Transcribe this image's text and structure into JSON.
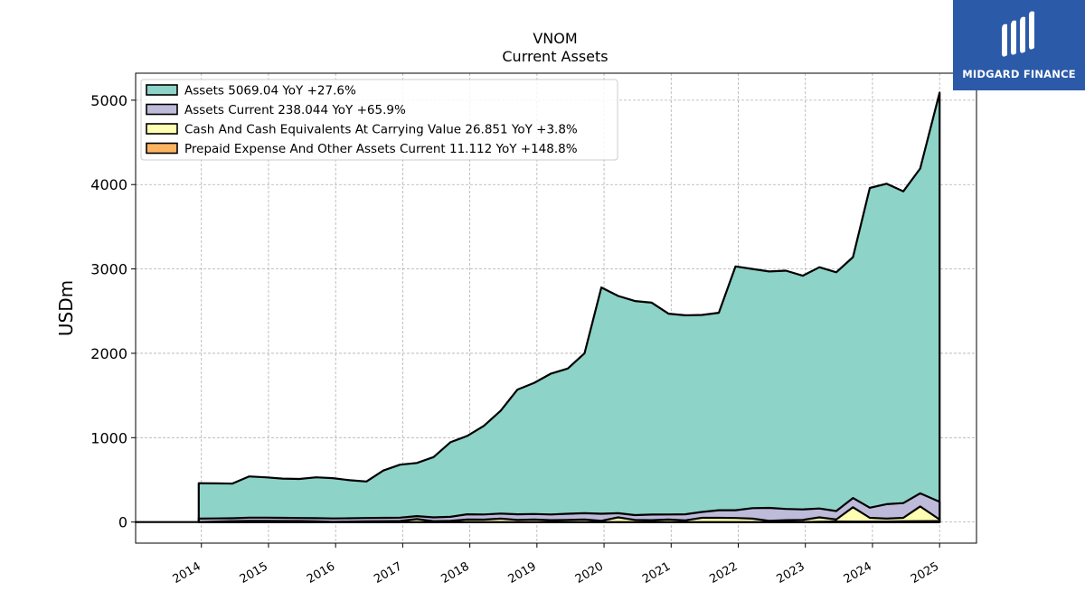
{
  "logo": {
    "brand": "MIDGARD FINANCE",
    "icon": "midgard-logo-icon"
  },
  "chart_data": {
    "type": "area",
    "title": "VNOM",
    "subtitle": "Current  Assets",
    "ylabel": "USDm",
    "xlabel": "",
    "ylim": [
      -250,
      5320
    ],
    "xlim": [
      2013.02,
      2025.55
    ],
    "yticks": [
      0,
      1000,
      2000,
      3000,
      4000,
      5000
    ],
    "xticks": [
      "2014",
      "2015",
      "2016",
      "2017",
      "2018",
      "2019",
      "2020",
      "2021",
      "2022",
      "2023",
      "2024",
      "2025"
    ],
    "grid": true,
    "legend_position": "top-left",
    "series": [
      {
        "name": "Assets  5069.04 YoY +27.6%",
        "color": "#8dd3c7",
        "points": [
          [
            2013.96,
            460
          ],
          [
            2014.21,
            458
          ],
          [
            2014.46,
            456
          ],
          [
            2014.71,
            540
          ],
          [
            2014.96,
            530
          ],
          [
            2015.21,
            515
          ],
          [
            2015.46,
            510
          ],
          [
            2015.71,
            530
          ],
          [
            2015.96,
            520
          ],
          [
            2016.21,
            495
          ],
          [
            2016.46,
            480
          ],
          [
            2016.71,
            610
          ],
          [
            2016.96,
            680
          ],
          [
            2017.21,
            700
          ],
          [
            2017.46,
            770
          ],
          [
            2017.71,
            945
          ],
          [
            2017.96,
            1020
          ],
          [
            2018.21,
            1140
          ],
          [
            2018.46,
            1320
          ],
          [
            2018.71,
            1570
          ],
          [
            2018.96,
            1650
          ],
          [
            2019.21,
            1760
          ],
          [
            2019.46,
            1820
          ],
          [
            2019.71,
            2000
          ],
          [
            2019.96,
            2780
          ],
          [
            2020.21,
            2680
          ],
          [
            2020.46,
            2620
          ],
          [
            2020.71,
            2600
          ],
          [
            2020.96,
            2470
          ],
          [
            2021.21,
            2450
          ],
          [
            2021.46,
            2455
          ],
          [
            2021.71,
            2480
          ],
          [
            2021.96,
            3030
          ],
          [
            2022.21,
            3000
          ],
          [
            2022.46,
            2970
          ],
          [
            2022.71,
            2980
          ],
          [
            2022.96,
            2920
          ],
          [
            2023.21,
            3020
          ],
          [
            2023.46,
            2960
          ],
          [
            2023.71,
            3140
          ],
          [
            2023.96,
            3960
          ],
          [
            2024.21,
            4010
          ],
          [
            2024.46,
            3920
          ],
          [
            2024.71,
            4190
          ],
          [
            2025.0,
            5090
          ]
        ]
      },
      {
        "name": "Assets Current  238.044 YoY +65.9%",
        "color": "#bebada",
        "points": [
          [
            2013.96,
            40
          ],
          [
            2014.21,
            42
          ],
          [
            2014.46,
            45
          ],
          [
            2014.71,
            52
          ],
          [
            2014.96,
            52
          ],
          [
            2015.21,
            50
          ],
          [
            2015.46,
            48
          ],
          [
            2015.71,
            46
          ],
          [
            2015.96,
            42
          ],
          [
            2016.21,
            45
          ],
          [
            2016.46,
            48
          ],
          [
            2016.71,
            50
          ],
          [
            2016.96,
            52
          ],
          [
            2017.21,
            70
          ],
          [
            2017.46,
            55
          ],
          [
            2017.71,
            62
          ],
          [
            2017.96,
            92
          ],
          [
            2018.21,
            90
          ],
          [
            2018.46,
            100
          ],
          [
            2018.71,
            92
          ],
          [
            2018.96,
            95
          ],
          [
            2019.21,
            90
          ],
          [
            2019.46,
            98
          ],
          [
            2019.71,
            105
          ],
          [
            2019.96,
            98
          ],
          [
            2020.21,
            105
          ],
          [
            2020.46,
            82
          ],
          [
            2020.71,
            88
          ],
          [
            2020.96,
            90
          ],
          [
            2021.21,
            92
          ],
          [
            2021.46,
            120
          ],
          [
            2021.71,
            140
          ],
          [
            2021.96,
            140
          ],
          [
            2022.21,
            165
          ],
          [
            2022.46,
            168
          ],
          [
            2022.71,
            155
          ],
          [
            2022.96,
            150
          ],
          [
            2023.21,
            160
          ],
          [
            2023.46,
            130
          ],
          [
            2023.71,
            285
          ],
          [
            2023.96,
            170
          ],
          [
            2024.21,
            212
          ],
          [
            2024.46,
            225
          ],
          [
            2024.71,
            340
          ],
          [
            2025.0,
            240
          ]
        ]
      },
      {
        "name": "Cash And Cash Equivalents At Carrying Value  26.851 YoY +3.8%",
        "color": "#ffffb3",
        "points": [
          [
            2013.02,
            0
          ],
          [
            2013.96,
            0
          ],
          [
            2014.21,
            5
          ],
          [
            2014.46,
            10
          ],
          [
            2014.71,
            15
          ],
          [
            2014.96,
            15
          ],
          [
            2015.21,
            12
          ],
          [
            2015.46,
            12
          ],
          [
            2015.71,
            8
          ],
          [
            2015.96,
            2
          ],
          [
            2016.21,
            5
          ],
          [
            2016.46,
            8
          ],
          [
            2016.71,
            10
          ],
          [
            2016.96,
            12
          ],
          [
            2017.21,
            35
          ],
          [
            2017.46,
            10
          ],
          [
            2017.71,
            15
          ],
          [
            2017.96,
            30
          ],
          [
            2018.21,
            28
          ],
          [
            2018.46,
            40
          ],
          [
            2018.71,
            25
          ],
          [
            2018.96,
            30
          ],
          [
            2019.21,
            22
          ],
          [
            2019.46,
            25
          ],
          [
            2019.71,
            30
          ],
          [
            2019.96,
            15
          ],
          [
            2020.21,
            55
          ],
          [
            2020.46,
            25
          ],
          [
            2020.71,
            22
          ],
          [
            2020.96,
            30
          ],
          [
            2021.21,
            20
          ],
          [
            2021.46,
            50
          ],
          [
            2021.71,
            50
          ],
          [
            2021.96,
            48
          ],
          [
            2022.21,
            40
          ],
          [
            2022.46,
            15
          ],
          [
            2022.71,
            22
          ],
          [
            2022.96,
            25
          ],
          [
            2023.21,
            55
          ],
          [
            2023.46,
            30
          ],
          [
            2023.71,
            175
          ],
          [
            2023.96,
            50
          ],
          [
            2024.21,
            40
          ],
          [
            2024.46,
            50
          ],
          [
            2024.71,
            185
          ],
          [
            2025.0,
            30
          ]
        ]
      },
      {
        "name": "Prepaid Expense And Other Assets Current  11.112 YoY +148.8%",
        "color": "#fdb462",
        "points": [
          [
            2022.96,
            0
          ],
          [
            2023.21,
            4
          ],
          [
            2023.46,
            6
          ],
          [
            2023.71,
            5
          ],
          [
            2023.96,
            5
          ],
          [
            2024.21,
            6
          ],
          [
            2024.46,
            8
          ],
          [
            2024.71,
            10
          ],
          [
            2025.0,
            11
          ]
        ]
      }
    ]
  }
}
